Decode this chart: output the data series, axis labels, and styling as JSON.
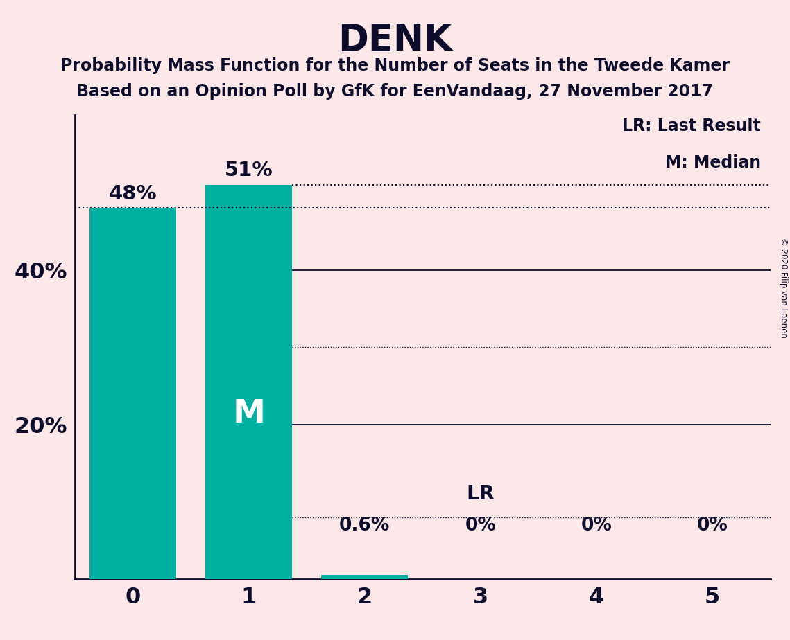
{
  "title": "DENK",
  "subtitle1": "Probability Mass Function for the Number of Seats in the Tweede Kamer",
  "subtitle2": "Based on an Opinion Poll by GfK for EenVandaag, 27 November 2017",
  "copyright": "© 2020 Filip van Laenen",
  "categories": [
    0,
    1,
    2,
    3,
    4,
    5
  ],
  "values": [
    0.48,
    0.51,
    0.006,
    0.0,
    0.0,
    0.0
  ],
  "bar_labels": [
    "48%",
    "51%",
    "0.6%",
    "0%",
    "0%",
    "0%"
  ],
  "bar_color": "#00b0a0",
  "background_color": "#fce8e8",
  "text_color": "#0d0d2b",
  "median_bar": 1,
  "median_label": "M",
  "lr_bar": 3,
  "lr_label": "LR",
  "last_result_value": 0.48,
  "median_value": 0.51,
  "lr_line_value": 0.08,
  "legend_lr": "LR: Last Result",
  "legend_m": "M: Median",
  "ylim": [
    0,
    0.6
  ],
  "ytick_values": [
    0.2,
    0.4
  ],
  "ytick_labels": [
    "20%",
    "40%"
  ]
}
